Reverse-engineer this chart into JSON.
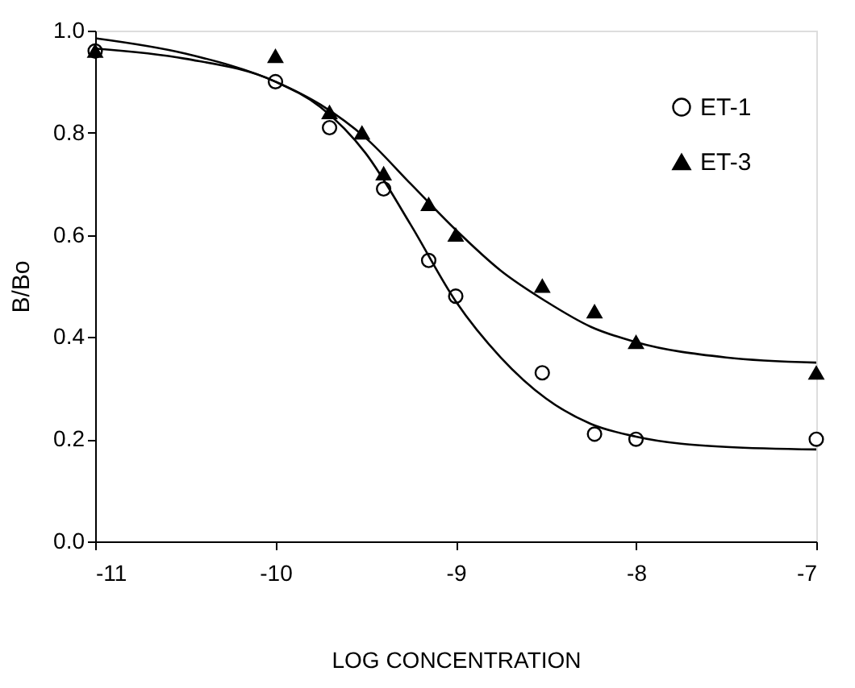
{
  "chart_data": {
    "type": "scatter",
    "xlabel": "LOG CONCENTRATION",
    "ylabel": "B/Bo",
    "xlim": [
      -11,
      -7
    ],
    "xticks": [
      -11,
      -10,
      -9,
      -8,
      -7
    ],
    "ylim": [
      0,
      1
    ],
    "yticks": [
      {
        "value": 0,
        "label": "0.0"
      },
      0.2,
      0.4,
      0.6,
      0.8,
      {
        "value": 1,
        "label": "1.0"
      }
    ],
    "grid": false,
    "legend": "top right",
    "series": [
      {
        "name": "ET-1",
        "color": "#000000",
        "marker": "circle",
        "x": [
          -11,
          -10,
          -9.7,
          -9.4,
          -9.15,
          -9.0,
          -8.52,
          -8.23,
          -8.0,
          -7
        ],
        "values": [
          0.96,
          0.9,
          0.81,
          0.69,
          0.55,
          0.48,
          0.33,
          0.21,
          0.2,
          0.2
        ]
      },
      {
        "name": "ET-3",
        "color": "#000000",
        "marker": "triangle",
        "x": [
          -11,
          -10,
          -9.7,
          -9.52,
          -9.4,
          -9.15,
          -9.0,
          -8.52,
          -8.23,
          -8.0,
          -7
        ],
        "values": [
          0.96,
          0.95,
          0.84,
          0.8,
          0.72,
          0.66,
          0.6,
          0.5,
          0.45,
          0.39,
          0.33
        ]
      },
      {
        "type": "line",
        "color": "#000000",
        "line_style": "solid",
        "marker": "none",
        "x": [
          -11,
          -10.5,
          -10,
          -9.75,
          -9.5,
          -9.25,
          -9,
          -8.75,
          -8.5,
          -8.25,
          -8,
          -7.5,
          -7
        ],
        "values": [
          0.965,
          0.945,
          0.9,
          0.85,
          0.76,
          0.62,
          0.47,
          0.36,
          0.28,
          0.23,
          0.205,
          0.185,
          0.18
        ]
      },
      {
        "type": "line",
        "color": "#000000",
        "line_style": "solid",
        "marker": "none",
        "x": [
          -11,
          -10.5,
          -10,
          -9.75,
          -9.5,
          -9.25,
          -9,
          -8.75,
          -8.5,
          -8.25,
          -8,
          -7.5,
          -7
        ],
        "values": [
          0.985,
          0.955,
          0.9,
          0.855,
          0.79,
          0.7,
          0.61,
          0.53,
          0.47,
          0.42,
          0.39,
          0.36,
          0.35
        ]
      }
    ]
  }
}
